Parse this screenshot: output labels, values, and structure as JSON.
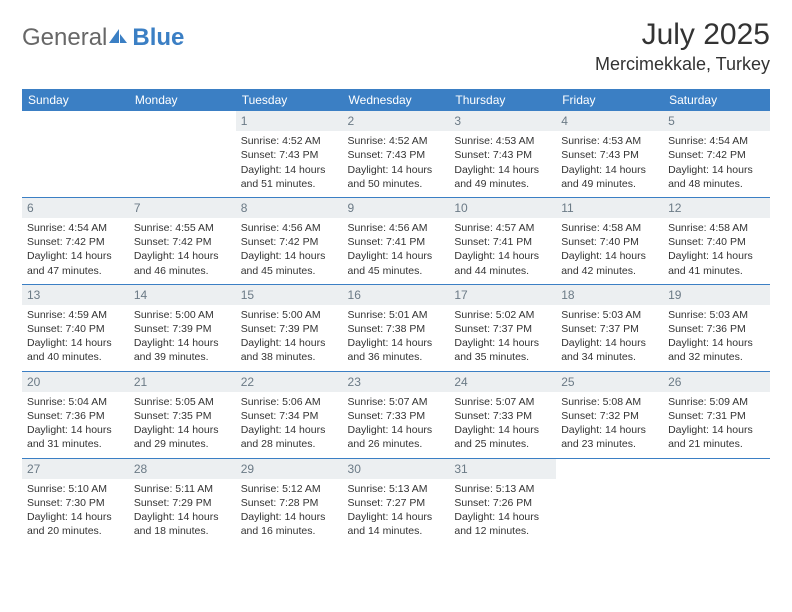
{
  "logo": {
    "general": "General",
    "blue": "Blue"
  },
  "title": "July 2025",
  "location": "Mercimekkale, Turkey",
  "colors": {
    "header_bg": "#3b7fc4",
    "header_text": "#ffffff",
    "daynum_bg": "#eceff1",
    "daynum_text": "#6b7a86",
    "cell_border": "#3b7fc4",
    "text": "#333333",
    "page_bg": "#ffffff",
    "logo_gray": "#676767",
    "logo_blue": "#3b7fc4"
  },
  "day_headers": [
    "Sunday",
    "Monday",
    "Tuesday",
    "Wednesday",
    "Thursday",
    "Friday",
    "Saturday"
  ],
  "weeks": [
    [
      {
        "num": "",
        "lines": []
      },
      {
        "num": "",
        "lines": []
      },
      {
        "num": "1",
        "lines": [
          "Sunrise: 4:52 AM",
          "Sunset: 7:43 PM",
          "Daylight: 14 hours and 51 minutes."
        ]
      },
      {
        "num": "2",
        "lines": [
          "Sunrise: 4:52 AM",
          "Sunset: 7:43 PM",
          "Daylight: 14 hours and 50 minutes."
        ]
      },
      {
        "num": "3",
        "lines": [
          "Sunrise: 4:53 AM",
          "Sunset: 7:43 PM",
          "Daylight: 14 hours and 49 minutes."
        ]
      },
      {
        "num": "4",
        "lines": [
          "Sunrise: 4:53 AM",
          "Sunset: 7:43 PM",
          "Daylight: 14 hours and 49 minutes."
        ]
      },
      {
        "num": "5",
        "lines": [
          "Sunrise: 4:54 AM",
          "Sunset: 7:42 PM",
          "Daylight: 14 hours and 48 minutes."
        ]
      }
    ],
    [
      {
        "num": "6",
        "lines": [
          "Sunrise: 4:54 AM",
          "Sunset: 7:42 PM",
          "Daylight: 14 hours and 47 minutes."
        ]
      },
      {
        "num": "7",
        "lines": [
          "Sunrise: 4:55 AM",
          "Sunset: 7:42 PM",
          "Daylight: 14 hours and 46 minutes."
        ]
      },
      {
        "num": "8",
        "lines": [
          "Sunrise: 4:56 AM",
          "Sunset: 7:42 PM",
          "Daylight: 14 hours and 45 minutes."
        ]
      },
      {
        "num": "9",
        "lines": [
          "Sunrise: 4:56 AM",
          "Sunset: 7:41 PM",
          "Daylight: 14 hours and 45 minutes."
        ]
      },
      {
        "num": "10",
        "lines": [
          "Sunrise: 4:57 AM",
          "Sunset: 7:41 PM",
          "Daylight: 14 hours and 44 minutes."
        ]
      },
      {
        "num": "11",
        "lines": [
          "Sunrise: 4:58 AM",
          "Sunset: 7:40 PM",
          "Daylight: 14 hours and 42 minutes."
        ]
      },
      {
        "num": "12",
        "lines": [
          "Sunrise: 4:58 AM",
          "Sunset: 7:40 PM",
          "Daylight: 14 hours and 41 minutes."
        ]
      }
    ],
    [
      {
        "num": "13",
        "lines": [
          "Sunrise: 4:59 AM",
          "Sunset: 7:40 PM",
          "Daylight: 14 hours and 40 minutes."
        ]
      },
      {
        "num": "14",
        "lines": [
          "Sunrise: 5:00 AM",
          "Sunset: 7:39 PM",
          "Daylight: 14 hours and 39 minutes."
        ]
      },
      {
        "num": "15",
        "lines": [
          "Sunrise: 5:00 AM",
          "Sunset: 7:39 PM",
          "Daylight: 14 hours and 38 minutes."
        ]
      },
      {
        "num": "16",
        "lines": [
          "Sunrise: 5:01 AM",
          "Sunset: 7:38 PM",
          "Daylight: 14 hours and 36 minutes."
        ]
      },
      {
        "num": "17",
        "lines": [
          "Sunrise: 5:02 AM",
          "Sunset: 7:37 PM",
          "Daylight: 14 hours and 35 minutes."
        ]
      },
      {
        "num": "18",
        "lines": [
          "Sunrise: 5:03 AM",
          "Sunset: 7:37 PM",
          "Daylight: 14 hours and 34 minutes."
        ]
      },
      {
        "num": "19",
        "lines": [
          "Sunrise: 5:03 AM",
          "Sunset: 7:36 PM",
          "Daylight: 14 hours and 32 minutes."
        ]
      }
    ],
    [
      {
        "num": "20",
        "lines": [
          "Sunrise: 5:04 AM",
          "Sunset: 7:36 PM",
          "Daylight: 14 hours and 31 minutes."
        ]
      },
      {
        "num": "21",
        "lines": [
          "Sunrise: 5:05 AM",
          "Sunset: 7:35 PM",
          "Daylight: 14 hours and 29 minutes."
        ]
      },
      {
        "num": "22",
        "lines": [
          "Sunrise: 5:06 AM",
          "Sunset: 7:34 PM",
          "Daylight: 14 hours and 28 minutes."
        ]
      },
      {
        "num": "23",
        "lines": [
          "Sunrise: 5:07 AM",
          "Sunset: 7:33 PM",
          "Daylight: 14 hours and 26 minutes."
        ]
      },
      {
        "num": "24",
        "lines": [
          "Sunrise: 5:07 AM",
          "Sunset: 7:33 PM",
          "Daylight: 14 hours and 25 minutes."
        ]
      },
      {
        "num": "25",
        "lines": [
          "Sunrise: 5:08 AM",
          "Sunset: 7:32 PM",
          "Daylight: 14 hours and 23 minutes."
        ]
      },
      {
        "num": "26",
        "lines": [
          "Sunrise: 5:09 AM",
          "Sunset: 7:31 PM",
          "Daylight: 14 hours and 21 minutes."
        ]
      }
    ],
    [
      {
        "num": "27",
        "lines": [
          "Sunrise: 5:10 AM",
          "Sunset: 7:30 PM",
          "Daylight: 14 hours and 20 minutes."
        ]
      },
      {
        "num": "28",
        "lines": [
          "Sunrise: 5:11 AM",
          "Sunset: 7:29 PM",
          "Daylight: 14 hours and 18 minutes."
        ]
      },
      {
        "num": "29",
        "lines": [
          "Sunrise: 5:12 AM",
          "Sunset: 7:28 PM",
          "Daylight: 14 hours and 16 minutes."
        ]
      },
      {
        "num": "30",
        "lines": [
          "Sunrise: 5:13 AM",
          "Sunset: 7:27 PM",
          "Daylight: 14 hours and 14 minutes."
        ]
      },
      {
        "num": "31",
        "lines": [
          "Sunrise: 5:13 AM",
          "Sunset: 7:26 PM",
          "Daylight: 14 hours and 12 minutes."
        ]
      },
      {
        "num": "",
        "lines": []
      },
      {
        "num": "",
        "lines": []
      }
    ]
  ]
}
